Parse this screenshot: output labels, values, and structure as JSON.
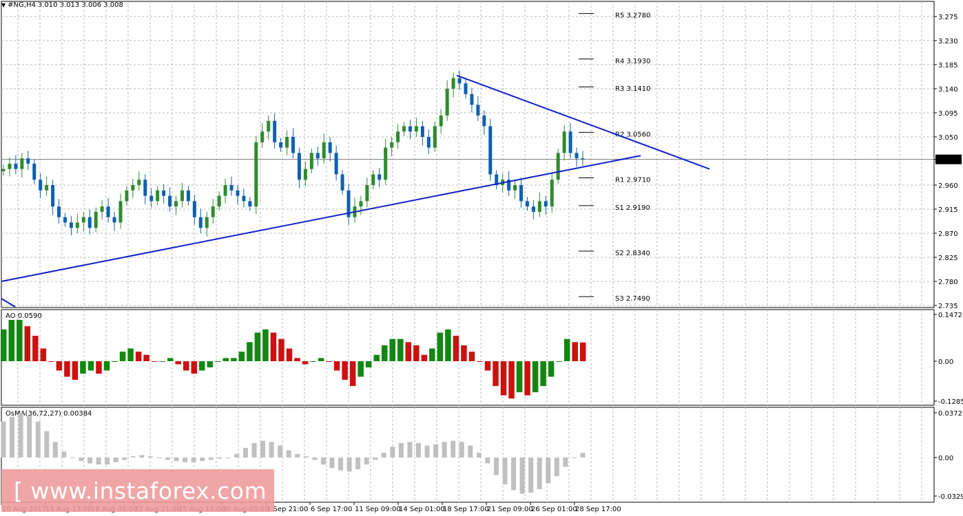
{
  "header": {
    "symbol_tf": "#NG,H4",
    "ohlc": "3.010 3.013 3.006 3.008",
    "menu_icon": "triangle-down-icon"
  },
  "watermark": {
    "text": "[ www.instaforex.com ]"
  },
  "colors": {
    "bull": "#2e8b2e",
    "bear": "#cc1111",
    "trendline": "#1020c8",
    "osma": "#c0c0c0",
    "grid": "#b8b8b8"
  },
  "chart_data": [
    {
      "type": "candlestick",
      "name": "price",
      "y_ticks": [
        "3.275",
        "3.230",
        "3.185",
        "3.140",
        "3.095",
        "3.050",
        "3.008",
        "2.960",
        "2.915",
        "2.870",
        "2.825",
        "2.780",
        "2.735"
      ],
      "ylim": [
        2.735,
        3.275
      ],
      "current_price": "3.008",
      "x_labels": [
        "10 Aug 2017",
        "15 Aug 13:00",
        "18 Aug 05:00",
        "22 Aug 21:00",
        "25 Aug 13:00",
        "30 Aug 05:00",
        "1 Sep 21:00",
        "6 Sep 17:00",
        "11 Sep 09:00",
        "14 Sep 01:00",
        "18 Sep 17:00",
        "21 Sep 09:00",
        "26 Sep 01:00",
        "28 Sep 17:00"
      ],
      "close_path": [
        2.99,
        3.0,
        2.99,
        3.01,
        3.0,
        2.97,
        2.95,
        2.96,
        2.92,
        2.9,
        2.89,
        2.88,
        2.89,
        2.9,
        2.88,
        2.91,
        2.92,
        2.9,
        2.89,
        2.93,
        2.95,
        2.96,
        2.97,
        2.94,
        2.93,
        2.95,
        2.94,
        2.92,
        2.93,
        2.95,
        2.93,
        2.9,
        2.88,
        2.9,
        2.92,
        2.94,
        2.96,
        2.95,
        2.94,
        2.93,
        2.92,
        3.04,
        3.06,
        3.08,
        3.04,
        3.03,
        3.05,
        3.02,
        2.97,
        2.99,
        3.02,
        3.01,
        3.04,
        3.02,
        2.98,
        2.95,
        2.9,
        2.92,
        2.93,
        2.96,
        2.98,
        2.97,
        3.03,
        3.04,
        3.06,
        3.07,
        3.06,
        3.07,
        3.05,
        3.03,
        3.07,
        3.09,
        3.14,
        3.16,
        3.15,
        3.13,
        3.11,
        3.09,
        3.07,
        2.98,
        2.96,
        2.97,
        2.95,
        2.96,
        2.93,
        2.92,
        2.91,
        2.93,
        2.92,
        2.97,
        3.02,
        3.06,
        3.02,
        3.01,
        3.008
      ],
      "pivots": [
        {
          "label": "R5",
          "value": "3.2780"
        },
        {
          "label": "R4",
          "value": "3.1930"
        },
        {
          "label": "R3",
          "value": "3.1410"
        },
        {
          "label": "R2",
          "value": "3.0560"
        },
        {
          "label": "R1",
          "value": "2.9710"
        },
        {
          "label": "S1",
          "value": "2.9190"
        },
        {
          "label": "S2",
          "value": "2.8340"
        },
        {
          "label": "S3",
          "value": "2.7490"
        }
      ],
      "trendlines": [
        {
          "from": [
            "10 Aug 2017",
            2.78
          ],
          "to": [
            "28 Sep 17:00+",
            3.015
          ]
        },
        {
          "from": [
            "18 Sep 17:00",
            3.165
          ],
          "to": [
            "28 Sep 17:00+",
            2.99
          ]
        }
      ],
      "grid": true
    },
    {
      "type": "bar",
      "name": "AO",
      "indicator_label": "AO 0.0590",
      "y_ticks": [
        "0.1472",
        "0.00",
        "-0.1285"
      ],
      "ylim": [
        -0.1285,
        0.1472
      ],
      "values": [
        0.1,
        0.13,
        0.13,
        0.11,
        0.08,
        0.04,
        0.0,
        -0.03,
        -0.05,
        -0.06,
        -0.04,
        -0.03,
        -0.04,
        -0.03,
        0.0,
        0.03,
        0.04,
        0.03,
        0.02,
        0.0,
        0.0,
        0.01,
        -0.01,
        -0.03,
        -0.04,
        -0.03,
        -0.02,
        0.0,
        0.01,
        0.01,
        0.03,
        0.06,
        0.09,
        0.1,
        0.09,
        0.07,
        0.04,
        0.01,
        -0.01,
        0.0,
        0.01,
        0.0,
        -0.03,
        -0.06,
        -0.08,
        -0.05,
        -0.02,
        0.02,
        0.05,
        0.07,
        0.07,
        0.06,
        0.05,
        0.02,
        0.04,
        0.09,
        0.1,
        0.08,
        0.05,
        0.03,
        0.0,
        -0.03,
        -0.08,
        -0.11,
        -0.12,
        -0.1,
        -0.11,
        -0.1,
        -0.08,
        -0.05,
        0.0,
        0.07,
        0.06,
        0.059
      ]
    },
    {
      "type": "area",
      "name": "OsMA",
      "indicator_label": "OsMA(36,72,27) 0.00384",
      "y_ticks": [
        "0.03728",
        "0.00",
        "-0.03297"
      ],
      "ylim": [
        -0.03297,
        0.03728
      ],
      "values": [
        0.03,
        0.034,
        0.037,
        0.035,
        0.03,
        0.022,
        0.013,
        0.005,
        0.0,
        -0.003,
        -0.005,
        -0.006,
        -0.006,
        -0.004,
        -0.002,
        0.001,
        0.002,
        0.001,
        0.0,
        -0.002,
        -0.003,
        -0.004,
        -0.004,
        -0.003,
        -0.002,
        -0.001,
        0.0,
        0.003,
        0.008,
        0.012,
        0.014,
        0.013,
        0.01,
        0.006,
        0.003,
        0.001,
        -0.002,
        -0.006,
        -0.009,
        -0.011,
        -0.012,
        -0.01,
        -0.006,
        -0.002,
        0.004,
        0.009,
        0.012,
        0.013,
        0.012,
        0.01,
        0.011,
        0.013,
        0.014,
        0.013,
        0.01,
        0.004,
        -0.005,
        -0.015,
        -0.023,
        -0.028,
        -0.031,
        -0.03,
        -0.027,
        -0.022,
        -0.016,
        -0.008,
        0.0,
        0.00384
      ]
    }
  ]
}
